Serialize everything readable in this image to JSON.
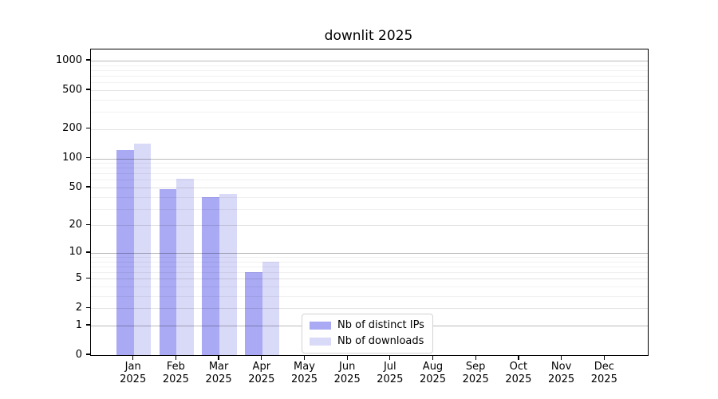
{
  "figure": {
    "background": "#ffffff"
  },
  "chart_data": {
    "type": "bar",
    "title": "downlit 2025",
    "x_year_label": "2025",
    "categories": [
      "Jan",
      "Feb",
      "Mar",
      "Apr",
      "May",
      "Jun",
      "Jul",
      "Aug",
      "Sep",
      "Oct",
      "Nov",
      "Dec"
    ],
    "series": [
      {
        "name": "Nb of distinct IPs",
        "color": "#a9a9f4",
        "values": [
          123,
          48,
          40,
          6,
          0,
          0,
          0,
          0,
          0,
          0,
          0,
          0
        ]
      },
      {
        "name": "Nb of downloads",
        "color": "#d9d9f8",
        "values": [
          142,
          62,
          43,
          8,
          0,
          0,
          0,
          0,
          0,
          0,
          0,
          0
        ]
      }
    ],
    "xlabel": "",
    "ylabel": "",
    "yscale": "log10(value+1)",
    "ylim": [
      0,
      1300
    ],
    "y_tick_values": [
      1000,
      500,
      200,
      100,
      50,
      20,
      10,
      5,
      2,
      1,
      0
    ],
    "y_tick_labels": [
      "1000",
      "500",
      "200",
      "100",
      "50",
      "20",
      "10",
      "5",
      "2",
      "1",
      "0"
    ],
    "grid": true,
    "legend_position": "lower-center-inside"
  }
}
